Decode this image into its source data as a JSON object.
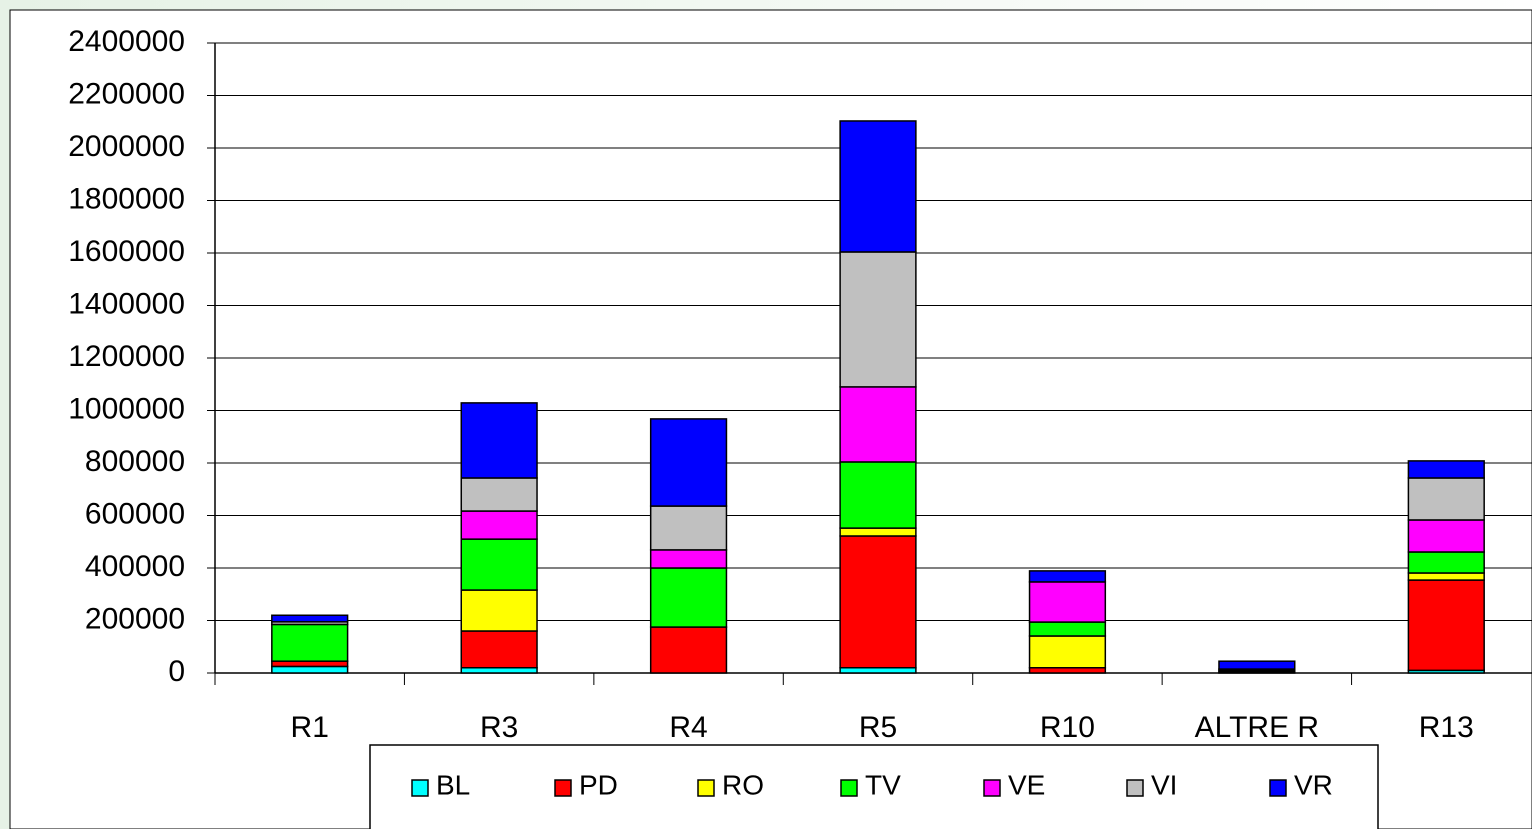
{
  "chart_data": {
    "type": "stacked_bar",
    "categories": [
      "R1",
      "R3",
      "R4",
      "R5",
      "R10",
      "ALTRE R",
      "R13"
    ],
    "series": [
      {
        "name": "BL",
        "color": "#00ffff",
        "values": [
          25000,
          20000,
          0,
          20000,
          0,
          0,
          10000
        ]
      },
      {
        "name": "PD",
        "color": "#ff0000",
        "values": [
          20000,
          140000,
          175000,
          502000,
          20000,
          5000,
          344000
        ]
      },
      {
        "name": "RO",
        "color": "#ffff00",
        "values": [
          0,
          156000,
          0,
          30000,
          121000,
          0,
          27000
        ]
      },
      {
        "name": "TV",
        "color": "#00ff00",
        "values": [
          140000,
          194000,
          225000,
          252000,
          53000,
          5000,
          80000
        ]
      },
      {
        "name": "VE",
        "color": "#ff00ff",
        "values": [
          0,
          107000,
          69000,
          286000,
          153000,
          0,
          122000
        ]
      },
      {
        "name": "VI",
        "color": "#c0c0c0",
        "values": [
          10000,
          126000,
          167000,
          514000,
          0,
          5000,
          160000
        ]
      },
      {
        "name": "VR",
        "color": "#0000ff",
        "values": [
          25000,
          286000,
          332000,
          499000,
          42000,
          30000,
          65000
        ]
      }
    ],
    "ylim": [
      0,
      2400000
    ],
    "yticks": [
      0,
      200000,
      400000,
      600000,
      800000,
      1000000,
      1200000,
      1400000,
      1600000,
      1800000,
      2000000,
      2200000,
      2400000
    ],
    "grid": true,
    "legend": "bottom"
  }
}
